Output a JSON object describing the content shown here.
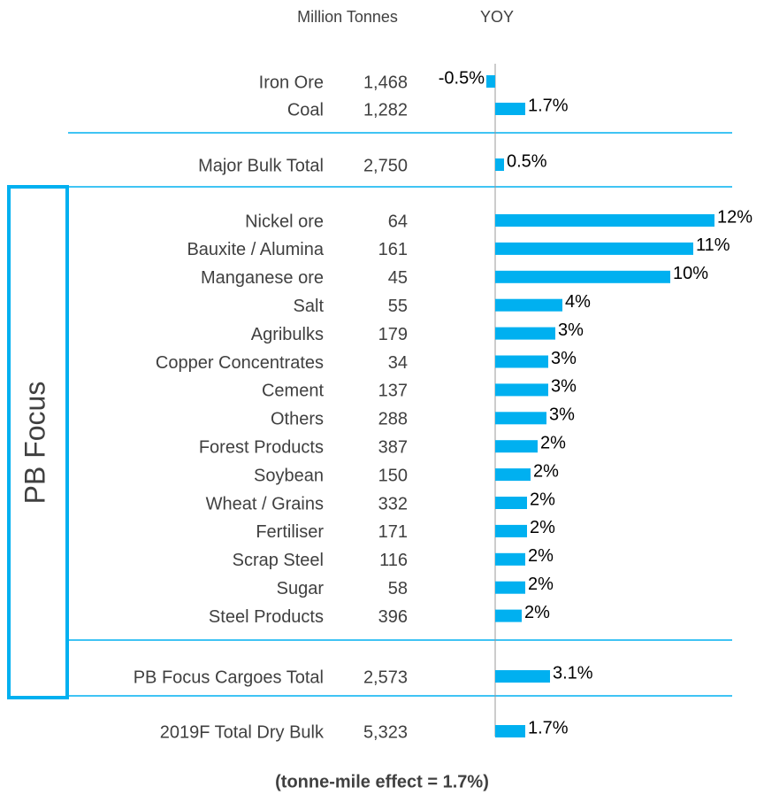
{
  "chart_data": {
    "type": "bar",
    "orientation": "horizontal",
    "column_headers": [
      "Million Tonnes",
      "YOY"
    ],
    "categories": [
      "Iron Ore",
      "Coal",
      "Major Bulk Total",
      "Nickel ore",
      "Bauxite / Alumina",
      "Manganese ore",
      "Salt",
      "Agribulks",
      "Copper Concentrates",
      "Cement",
      "Others",
      "Forest Products",
      "Soybean",
      "Wheat / Grains",
      "Fertiliser",
      "Scrap Steel",
      "Sugar",
      "Steel Products",
      "PB Focus Cargoes Total",
      "2019F Total Dry Bulk"
    ],
    "tonnes": [
      "1,468",
      "1,282",
      "2,750",
      "64",
      "161",
      "45",
      "55",
      "179",
      "34",
      "137",
      "288",
      "387",
      "150",
      "332",
      "171",
      "116",
      "58",
      "396",
      "2,573",
      "5,323"
    ],
    "values": [
      -0.5,
      1.7,
      0.5,
      12.4,
      11.2,
      9.9,
      3.8,
      3.4,
      3.0,
      3.0,
      2.9,
      2.4,
      2.0,
      1.8,
      1.8,
      1.7,
      1.7,
      1.5,
      3.1,
      1.7
    ],
    "value_labels": [
      "-0.5%",
      "1.7%",
      "0.5%",
      "12%",
      "11%",
      "10%",
      "4%",
      "3%",
      "3%",
      "3%",
      "3%",
      "2%",
      "2%",
      "2%",
      "2%",
      "2%",
      "2%",
      "2%",
      "3.1%",
      "1.7%"
    ],
    "color": "#00b0f0",
    "xlim": [
      -5,
      15
    ],
    "group_label": "PB Focus",
    "note": "(tonne-mile effect = 1.7%)"
  }
}
